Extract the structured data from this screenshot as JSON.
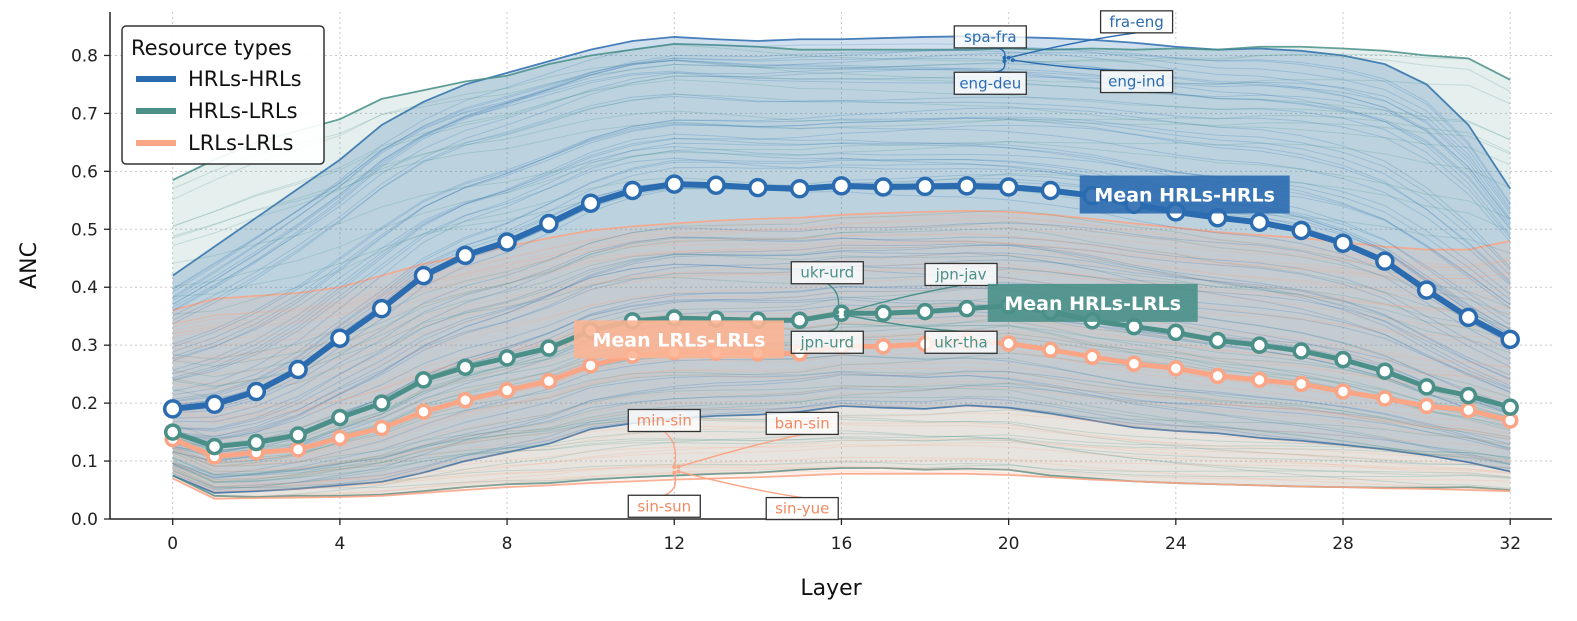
{
  "chart_data": {
    "type": "line",
    "xlabel": "Layer",
    "ylabel": "ANC",
    "xlim": [
      -1.5,
      33
    ],
    "ylim": [
      0,
      0.875
    ],
    "xticks": [
      0,
      4,
      8,
      12,
      16,
      20,
      24,
      28,
      32
    ],
    "yticks": [
      0.0,
      0.1,
      0.2,
      0.3,
      0.4,
      0.5,
      0.6,
      0.7,
      0.8
    ],
    "grid": "dotted",
    "legend": {
      "title": "Resource types",
      "position": "top-left",
      "entries": [
        "HRLs-HRLs",
        "HRLs-LRLs",
        "LRLs-LRLs"
      ]
    },
    "x": [
      0,
      1,
      2,
      3,
      4,
      5,
      6,
      7,
      8,
      9,
      10,
      11,
      12,
      13,
      14,
      15,
      16,
      17,
      18,
      19,
      20,
      21,
      22,
      23,
      24,
      25,
      26,
      27,
      28,
      29,
      30,
      31,
      32
    ],
    "series": [
      {
        "name": "HRLs-HRLs",
        "color": "#2b6cb0",
        "label": "Mean HRLs-HRLs",
        "mean": [
          0.19,
          0.198,
          0.22,
          0.258,
          0.312,
          0.363,
          0.42,
          0.455,
          0.478,
          0.51,
          0.545,
          0.567,
          0.578,
          0.576,
          0.572,
          0.57,
          0.575,
          0.573,
          0.574,
          0.575,
          0.573,
          0.567,
          0.558,
          0.543,
          0.53,
          0.52,
          0.512,
          0.498,
          0.476,
          0.445,
          0.395,
          0.348,
          0.31
        ],
        "max": [
          0.42,
          0.47,
          0.52,
          0.57,
          0.62,
          0.68,
          0.72,
          0.75,
          0.77,
          0.79,
          0.81,
          0.825,
          0.832,
          0.828,
          0.825,
          0.828,
          0.828,
          0.83,
          0.832,
          0.833,
          0.832,
          0.83,
          0.827,
          0.822,
          0.815,
          0.81,
          0.812,
          0.808,
          0.8,
          0.785,
          0.75,
          0.68,
          0.57
        ],
        "min": [
          0.075,
          0.045,
          0.048,
          0.052,
          0.058,
          0.064,
          0.08,
          0.1,
          0.115,
          0.13,
          0.155,
          0.165,
          0.173,
          0.178,
          0.18,
          0.185,
          0.195,
          0.192,
          0.19,
          0.196,
          0.192,
          0.182,
          0.17,
          0.158,
          0.152,
          0.148,
          0.14,
          0.135,
          0.128,
          0.12,
          0.11,
          0.098,
          0.082
        ]
      },
      {
        "name": "HRLs-LRLs",
        "color": "#4a9089",
        "label": "Mean HRLs-LRLs",
        "mean": [
          0.15,
          0.125,
          0.132,
          0.145,
          0.175,
          0.2,
          0.24,
          0.262,
          0.278,
          0.295,
          0.325,
          0.342,
          0.347,
          0.345,
          0.343,
          0.343,
          0.355,
          0.355,
          0.358,
          0.363,
          0.368,
          0.358,
          0.342,
          0.332,
          0.322,
          0.308,
          0.3,
          0.29,
          0.275,
          0.255,
          0.228,
          0.213,
          0.193
        ],
        "max": [
          0.585,
          0.62,
          0.65,
          0.67,
          0.69,
          0.725,
          0.74,
          0.755,
          0.765,
          0.785,
          0.8,
          0.81,
          0.82,
          0.818,
          0.815,
          0.81,
          0.81,
          0.81,
          0.81,
          0.81,
          0.812,
          0.81,
          0.812,
          0.81,
          0.812,
          0.81,
          0.815,
          0.815,
          0.812,
          0.808,
          0.8,
          0.795,
          0.758
        ],
        "min": [
          0.075,
          0.04,
          0.038,
          0.04,
          0.04,
          0.042,
          0.048,
          0.055,
          0.06,
          0.062,
          0.068,
          0.072,
          0.075,
          0.078,
          0.08,
          0.085,
          0.088,
          0.088,
          0.085,
          0.087,
          0.085,
          0.075,
          0.07,
          0.065,
          0.062,
          0.06,
          0.058,
          0.056,
          0.055,
          0.054,
          0.054,
          0.055,
          0.05
        ]
      },
      {
        "name": "LRLs-LRLs",
        "color": "#f9a586",
        "label": "Mean LRLs-LRLs",
        "mean": [
          0.138,
          0.108,
          0.115,
          0.12,
          0.14,
          0.157,
          0.185,
          0.205,
          0.222,
          0.238,
          0.265,
          0.282,
          0.288,
          0.287,
          0.286,
          0.286,
          0.298,
          0.298,
          0.302,
          0.307,
          0.303,
          0.292,
          0.28,
          0.268,
          0.26,
          0.247,
          0.24,
          0.233,
          0.22,
          0.208,
          0.195,
          0.188,
          0.17
        ],
        "max": [
          0.36,
          0.38,
          0.385,
          0.39,
          0.4,
          0.42,
          0.44,
          0.455,
          0.47,
          0.485,
          0.498,
          0.505,
          0.51,
          0.515,
          0.518,
          0.52,
          0.525,
          0.528,
          0.53,
          0.532,
          0.53,
          0.525,
          0.518,
          0.51,
          0.503,
          0.495,
          0.49,
          0.485,
          0.478,
          0.47,
          0.465,
          0.465,
          0.48
        ],
        "min": [
          0.07,
          0.035,
          0.036,
          0.037,
          0.038,
          0.04,
          0.045,
          0.05,
          0.055,
          0.058,
          0.062,
          0.065,
          0.068,
          0.07,
          0.072,
          0.075,
          0.078,
          0.078,
          0.078,
          0.078,
          0.076,
          0.072,
          0.068,
          0.065,
          0.062,
          0.06,
          0.058,
          0.056,
          0.055,
          0.053,
          0.052,
          0.05,
          0.048
        ]
      }
    ],
    "annotations": {
      "HRLs-HRLs": [
        {
          "text": "spa-fra",
          "box_x": 18.7,
          "box_y": 0.832,
          "point_x": 19.9,
          "point_y": 0.796
        },
        {
          "text": "fra-eng",
          "box_x": 22.2,
          "box_y": 0.858,
          "point_x": 20.0,
          "point_y": 0.796
        },
        {
          "text": "eng-deu",
          "box_x": 18.7,
          "box_y": 0.752,
          "point_x": 19.9,
          "point_y": 0.79
        },
        {
          "text": "eng-ind",
          "box_x": 22.2,
          "box_y": 0.755,
          "point_x": 20.1,
          "point_y": 0.792
        }
      ],
      "HRLs-LRLs": [
        {
          "text": "ukr-urd",
          "box_x": 14.8,
          "box_y": 0.425,
          "point_x": 15.9,
          "point_y": 0.357
        },
        {
          "text": "jpn-jav",
          "box_x": 18.0,
          "box_y": 0.422,
          "point_x": 16.1,
          "point_y": 0.357
        },
        {
          "text": "jpn-urd",
          "box_x": 14.8,
          "box_y": 0.305,
          "point_x": 15.9,
          "point_y": 0.35
        },
        {
          "text": "ukr-tha",
          "box_x": 18.0,
          "box_y": 0.305,
          "point_x": 16.1,
          "point_y": 0.352
        }
      ],
      "LRLs-LRLs": [
        {
          "text": "min-sin",
          "box_x": 10.9,
          "box_y": 0.17,
          "point_x": 12.0,
          "point_y": 0.09
        },
        {
          "text": "ban-sin",
          "box_x": 14.2,
          "box_y": 0.165,
          "point_x": 12.1,
          "point_y": 0.09
        },
        {
          "text": "sin-sun",
          "box_x": 10.9,
          "box_y": 0.022,
          "point_x": 12.0,
          "point_y": 0.08
        },
        {
          "text": "sin-yue",
          "box_x": 14.2,
          "box_y": 0.018,
          "point_x": 12.1,
          "point_y": 0.082
        }
      ]
    }
  }
}
